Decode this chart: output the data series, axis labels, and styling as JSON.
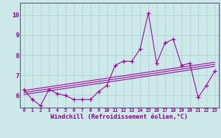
{
  "x": [
    0,
    1,
    2,
    3,
    4,
    5,
    6,
    7,
    8,
    9,
    10,
    11,
    12,
    13,
    14,
    15,
    16,
    17,
    18,
    19,
    20,
    21,
    22,
    23
  ],
  "line1": [
    6.3,
    5.8,
    5.5,
    6.3,
    6.1,
    6.0,
    5.8,
    5.8,
    5.8,
    6.2,
    6.5,
    7.5,
    7.7,
    7.7,
    8.3,
    10.1,
    7.6,
    8.6,
    8.8,
    7.5,
    7.6,
    5.9,
    6.5,
    7.2
  ],
  "trend_lines": [
    {
      "x": [
        0,
        23
      ],
      "y": [
        6.05,
        7.45
      ]
    },
    {
      "x": [
        0,
        23
      ],
      "y": [
        6.15,
        7.55
      ]
    },
    {
      "x": [
        0,
        23
      ],
      "y": [
        6.25,
        7.65
      ]
    }
  ],
  "ylim": [
    5.4,
    10.6
  ],
  "xlim": [
    -0.5,
    23.5
  ],
  "yticks": [
    6,
    7,
    8,
    9,
    10
  ],
  "xticks": [
    0,
    1,
    2,
    3,
    4,
    5,
    6,
    7,
    8,
    9,
    10,
    11,
    12,
    13,
    14,
    15,
    16,
    17,
    18,
    19,
    20,
    21,
    22,
    23
  ],
  "xlabel": "Windchill (Refroidissement éolien,°C)",
  "line_color": "#990099",
  "bg_color": "#cce8e8",
  "grid_color": "#aacece",
  "axis_color": "#555577",
  "text_color": "#880088",
  "font_size": 6.5
}
